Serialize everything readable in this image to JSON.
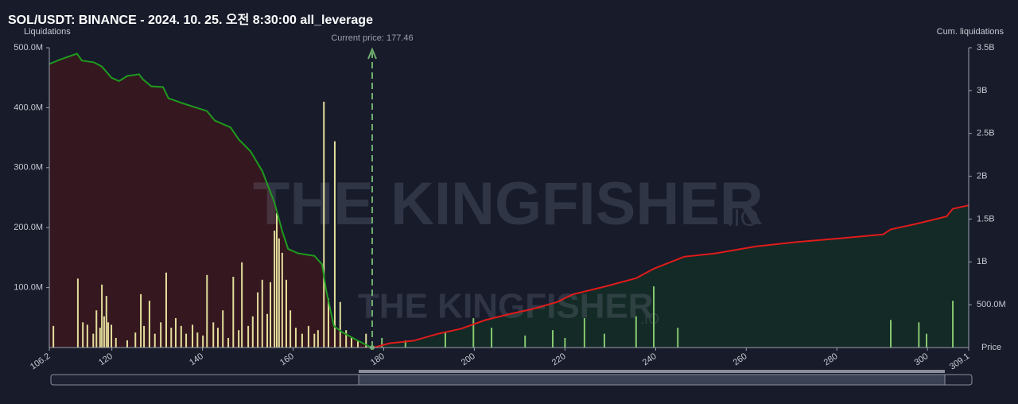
{
  "chart_data": {
    "type": "liquidation",
    "title": "SOL/USDT: BINANCE - 2024. 10. 25. 오전 8:30:00 all_leverage",
    "y_label": "Liquidations",
    "y2_label": "Cum. liquidations",
    "x_label": "Price",
    "watermark": "THE KINGFISHER",
    "watermark_suffix": ".IO",
    "current_price": {
      "value": 177.46,
      "label": "Current price: 177.46"
    },
    "xlim": [
      106.2,
      309.1
    ],
    "xticks": [
      106.2,
      120,
      140,
      160,
      180,
      200,
      220,
      240,
      260,
      280,
      300,
      309.1
    ],
    "ylim": [
      0,
      500
    ],
    "yticks": [
      {
        "value": 100,
        "label": "100.0M"
      },
      {
        "value": 200,
        "label": "200.0M"
      },
      {
        "value": 300,
        "label": "300.0M"
      },
      {
        "value": 400,
        "label": "400.0M"
      },
      {
        "value": 500,
        "label": "500.0M"
      }
    ],
    "y2lim": [
      0,
      3.5
    ],
    "y2ticks": [
      {
        "value": 0.5,
        "label": "500.0M"
      },
      {
        "value": 1,
        "label": "1B"
      },
      {
        "value": 1.5,
        "label": "1.5B"
      },
      {
        "value": 2,
        "label": "2B"
      },
      {
        "value": 2.5,
        "label": "2.5B"
      },
      {
        "value": 3,
        "label": "3B"
      },
      {
        "value": 3.5,
        "label": "3.5B"
      }
    ],
    "bars": [
      {
        "color": "#e3df9c",
        "x": [
          107.1,
          112.5,
          113.6,
          114.6,
          115.9,
          116.6,
          117.4,
          117.8,
          118.3,
          118.8,
          119.2,
          119.9,
          120.9,
          123.4,
          125.2,
          126.4,
          127.1,
          128.3,
          129.5,
          130.8,
          132.0,
          133.1,
          134.1,
          135.3,
          136.4,
          137.8,
          138.9,
          140.1,
          141.0,
          142.4,
          143.4,
          144.5,
          145.7,
          146.8,
          148.0,
          148.7,
          150.1,
          151.1,
          152.2,
          153.2,
          154.3,
          155.0,
          155.9,
          156.4,
          156.9,
          157.6,
          158.5,
          159.4,
          160.6,
          162.0,
          163.4,
          164.7,
          165.5,
          166.8,
          167.8,
          169.2,
          170.4,
          171.7,
          172.9,
          174.3,
          176.1
        ],
        "values": [
          36,
          115,
          42,
          38,
          23,
          62,
          33,
          105,
          52,
          86,
          42,
          38,
          16,
          12,
          25,
          89,
          36,
          78,
          23,
          42,
          125,
          33,
          49,
          36,
          23,
          38,
          25,
          20,
          121,
          42,
          33,
          62,
          16,
          118,
          29,
          142,
          36,
          52,
          92,
          113,
          56,
          109,
          195,
          224,
          182,
          158,
          113,
          62,
          33,
          23,
          36,
          23,
          29,
          410,
          82,
          344,
          76,
          29,
          16,
          12,
          23
        ]
      },
      {
        "color": "#86c96f",
        "x": [
          179.6,
          184.8,
          193.6,
          199.8,
          203.8,
          211.2,
          217.3,
          220.0,
          224.3,
          228.7,
          235.7,
          239.6,
          244.9,
          291.9,
          298.1,
          299.8,
          305.6
        ],
        "values": [
          16,
          12,
          25,
          49,
          33,
          20,
          29,
          16,
          49,
          23,
          52,
          102,
          33,
          46,
          42,
          23,
          78
        ]
      }
    ],
    "series": [
      {
        "color": "#1f9a1f",
        "fill": "#35181f",
        "axis": "y2",
        "x": [
          106.2,
          108.5,
          112.3,
          113.4,
          116.0,
          117.8,
          119.9,
          121.6,
          123.4,
          126.0,
          126.9,
          128.7,
          131.3,
          132.5,
          135.7,
          141.0,
          142.7,
          146.2,
          148.0,
          150.6,
          153.2,
          155.9,
          157.6,
          158.9,
          161.1,
          164.7,
          166.4,
          167.3,
          169.0,
          170.8,
          174.3,
          177.3
        ],
        "values": [
          3.31,
          3.36,
          3.43,
          3.35,
          3.33,
          3.28,
          3.15,
          3.11,
          3.17,
          3.19,
          3.13,
          3.05,
          3.04,
          2.91,
          2.85,
          2.76,
          2.65,
          2.57,
          2.43,
          2.29,
          2.06,
          1.69,
          1.36,
          1.15,
          1.1,
          1.07,
          0.97,
          0.67,
          0.25,
          0.18,
          0.08,
          0
        ]
      },
      {
        "color": "#e01b1b",
        "fill": "#142a26",
        "axis": "y2",
        "x": [
          177.8,
          181.3,
          186.6,
          191.9,
          197.1,
          202.4,
          207.7,
          212.9,
          218.2,
          221.7,
          228.7,
          235.7,
          239.6,
          246.3,
          253.3,
          262.1,
          270.8,
          279.6,
          290.2,
          291.9,
          297.2,
          304.2,
          305.6,
          309.1
        ],
        "values": [
          0,
          0.05,
          0.08,
          0.16,
          0.22,
          0.32,
          0.39,
          0.45,
          0.53,
          0.62,
          0.71,
          0.81,
          0.92,
          1.06,
          1.1,
          1.18,
          1.23,
          1.27,
          1.32,
          1.38,
          1.44,
          1.53,
          1.62,
          1.66
        ]
      }
    ]
  }
}
